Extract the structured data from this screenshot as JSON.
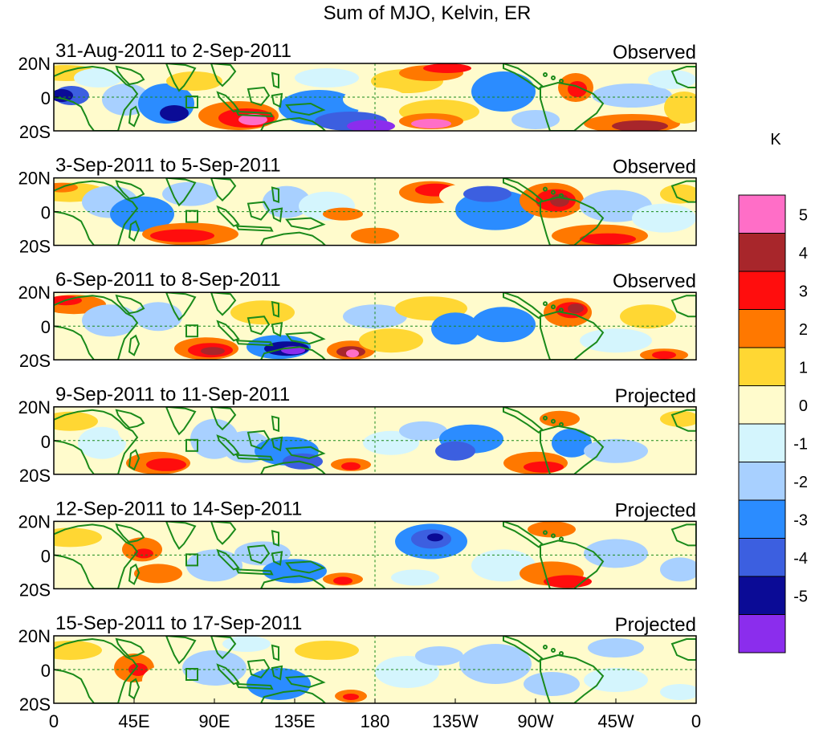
{
  "title": "Sum of MJO, Kelvin, ER",
  "colorbar": {
    "unit": "K",
    "labels": [
      "5",
      "4",
      "3",
      "2",
      "1",
      "0",
      "-1",
      "-2",
      "-3",
      "-4",
      "-5"
    ],
    "colors": [
      "#ff6ec7",
      "#a8262b",
      "#ff0d0d",
      "#ff7800",
      "#ffd733",
      "#fffbcc",
      "#d4f5fd",
      "#a8d0ff",
      "#2b8cff",
      "#3c5fe0",
      "#0b0b96",
      "#8b2ded"
    ]
  },
  "y_ticks": [
    "20N",
    "0",
    "20S"
  ],
  "x_ticks": [
    "0",
    "45E",
    "90E",
    "135E",
    "180",
    "135W",
    "90W",
    "45W",
    "0"
  ],
  "panels": [
    {
      "date_range": "31-Aug-2011 to 2-Sep-2011",
      "type": "Observed"
    },
    {
      "date_range": "3-Sep-2011 to 5-Sep-2011",
      "type": "Observed"
    },
    {
      "date_range": "6-Sep-2011 to 8-Sep-2011",
      "type": "Observed"
    },
    {
      "date_range": "9-Sep-2011 to 11-Sep-2011",
      "type": "Projected"
    },
    {
      "date_range": "12-Sep-2011 to 14-Sep-2011",
      "type": "Projected"
    },
    {
      "date_range": "15-Sep-2011 to 17-Sep-2011",
      "type": "Projected"
    }
  ]
}
